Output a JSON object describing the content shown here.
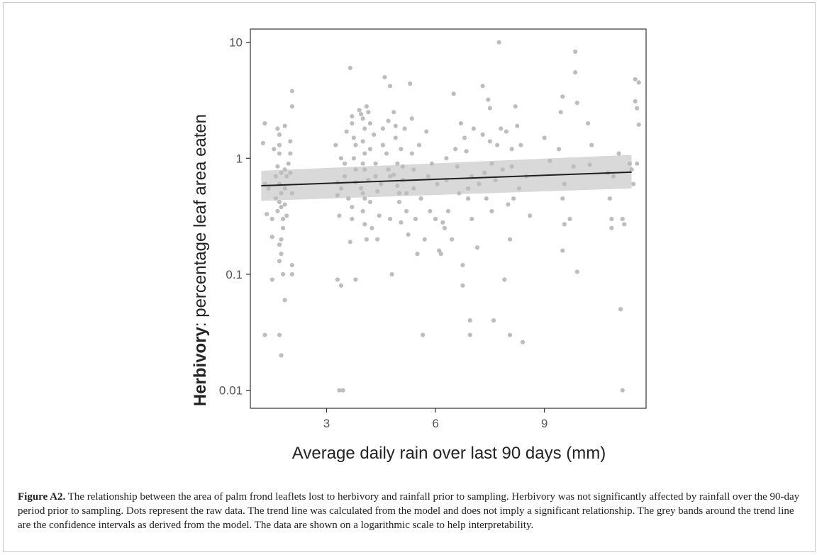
{
  "chart_data": {
    "type": "scatter",
    "title": "",
    "xlabel": "Average daily rain over last 90 days (mm)",
    "ylabel_bold": "Herbivory",
    "ylabel_rest": ": percentage leaf area eaten",
    "xlim": [
      0.9,
      11.8
    ],
    "ylim": [
      0.007,
      13
    ],
    "yscale": "log",
    "grid": false,
    "x_ticks": [
      {
        "value": 3,
        "label": "3"
      },
      {
        "value": 6,
        "label": "6"
      },
      {
        "value": 9,
        "label": "9"
      }
    ],
    "y_ticks": [
      {
        "value": 0.01,
        "label": "0.01"
      },
      {
        "value": 0.1,
        "label": "0.1"
      },
      {
        "value": 1,
        "label": "1"
      },
      {
        "value": 10,
        "label": "10"
      }
    ],
    "colors": {
      "points": "#bdbdbd",
      "line": "#1f1f1f",
      "band": "#d9d9d9",
      "axis": "#333333"
    },
    "trend": {
      "x": [
        1.2,
        11.4
      ],
      "y": [
        0.58,
        0.76
      ]
    },
    "confidence_band": {
      "x": [
        1.2,
        11.4
      ],
      "lower": [
        0.43,
        0.55
      ],
      "upper": [
        0.78,
        1.07
      ]
    },
    "points": [
      [
        1.3,
        2.0
      ],
      [
        1.25,
        1.35
      ],
      [
        1.3,
        0.6
      ],
      [
        1.4,
        0.55
      ],
      [
        1.35,
        0.33
      ],
      [
        1.3,
        0.03
      ],
      [
        1.5,
        0.3
      ],
      [
        1.5,
        0.21
      ],
      [
        1.5,
        0.09
      ],
      [
        1.55,
        1.2
      ],
      [
        1.65,
        1.8
      ],
      [
        1.7,
        1.6
      ],
      [
        1.7,
        1.3
      ],
      [
        1.7,
        1.1
      ],
      [
        1.65,
        0.85
      ],
      [
        1.75,
        0.75
      ],
      [
        1.7,
        0.6
      ],
      [
        1.75,
        0.5
      ],
      [
        1.7,
        0.42
      ],
      [
        1.75,
        0.38
      ],
      [
        1.8,
        0.3
      ],
      [
        1.8,
        0.25
      ],
      [
        1.75,
        0.2
      ],
      [
        1.7,
        0.18
      ],
      [
        1.75,
        0.15
      ],
      [
        1.7,
        0.13
      ],
      [
        1.8,
        0.1
      ],
      [
        1.7,
        0.03
      ],
      [
        1.75,
        0.02
      ],
      [
        1.85,
        1.9
      ],
      [
        1.85,
        0.8
      ],
      [
        1.85,
        0.55
      ],
      [
        1.85,
        0.4
      ],
      [
        1.9,
        0.32
      ],
      [
        1.85,
        0.06
      ],
      [
        1.9,
        0.7
      ],
      [
        1.95,
        0.9
      ],
      [
        2.0,
        1.4
      ],
      [
        2.0,
        1.1
      ],
      [
        2.05,
        3.8
      ],
      [
        2.05,
        2.8
      ],
      [
        2.0,
        0.75
      ],
      [
        2.05,
        0.5
      ],
      [
        2.05,
        0.12
      ],
      [
        2.05,
        0.1
      ],
      [
        1.6,
        0.7
      ],
      [
        1.6,
        0.45
      ],
      [
        1.65,
        0.35
      ],
      [
        3.3,
        0.09
      ],
      [
        3.4,
        0.08
      ],
      [
        3.35,
        0.01
      ],
      [
        3.45,
        0.01
      ],
      [
        3.3,
        0.62
      ],
      [
        3.4,
        0.55
      ],
      [
        3.3,
        0.48
      ],
      [
        3.35,
        0.32
      ],
      [
        3.25,
        1.3
      ],
      [
        3.4,
        1.0
      ],
      [
        3.5,
        0.7
      ],
      [
        3.5,
        0.9
      ],
      [
        3.55,
        1.7
      ],
      [
        3.6,
        0.45
      ],
      [
        3.65,
        6.0
      ],
      [
        3.7,
        2.3
      ],
      [
        3.7,
        2.0
      ],
      [
        3.75,
        1.5
      ],
      [
        3.8,
        1.3
      ],
      [
        3.75,
        1.0
      ],
      [
        3.8,
        0.8
      ],
      [
        3.8,
        0.62
      ],
      [
        3.7,
        0.38
      ],
      [
        3.7,
        0.3
      ],
      [
        3.65,
        0.19
      ],
      [
        3.8,
        0.09
      ],
      [
        3.9,
        2.6
      ],
      [
        3.95,
        2.4
      ],
      [
        4.0,
        2.2
      ],
      [
        4.05,
        1.8
      ],
      [
        4.0,
        1.4
      ],
      [
        4.05,
        1.1
      ],
      [
        4.0,
        0.9
      ],
      [
        4.05,
        0.8
      ],
      [
        3.95,
        0.55
      ],
      [
        4.0,
        0.5
      ],
      [
        4.05,
        0.45
      ],
      [
        4.0,
        0.35
      ],
      [
        4.05,
        0.27
      ],
      [
        4.1,
        0.2
      ],
      [
        4.1,
        2.8
      ],
      [
        4.15,
        2.5
      ],
      [
        4.2,
        2.0
      ],
      [
        4.2,
        1.2
      ],
      [
        4.15,
        0.65
      ],
      [
        4.2,
        0.42
      ],
      [
        4.25,
        0.25
      ],
      [
        4.3,
        1.6
      ],
      [
        4.35,
        0.9
      ],
      [
        4.35,
        0.7
      ],
      [
        4.4,
        0.52
      ],
      [
        4.45,
        0.32
      ],
      [
        4.4,
        0.2
      ],
      [
        4.5,
        0.6
      ],
      [
        4.55,
        1.8
      ],
      [
        4.55,
        1.3
      ],
      [
        4.6,
        5.0
      ],
      [
        4.65,
        1.1
      ],
      [
        4.7,
        2.1
      ],
      [
        4.7,
        0.8
      ],
      [
        4.75,
        0.7
      ],
      [
        4.75,
        0.3
      ],
      [
        4.8,
        0.1
      ],
      [
        4.75,
        4.2
      ],
      [
        4.85,
        2.5
      ],
      [
        4.9,
        1.9
      ],
      [
        4.9,
        1.5
      ],
      [
        4.95,
        0.9
      ],
      [
        4.85,
        0.72
      ],
      [
        4.95,
        0.58
      ],
      [
        5.0,
        0.42
      ],
      [
        5.0,
        0.5
      ],
      [
        5.05,
        1.2
      ],
      [
        5.05,
        0.28
      ],
      [
        5.1,
        0.85
      ],
      [
        5.1,
        0.65
      ],
      [
        5.15,
        1.8
      ],
      [
        5.2,
        0.5
      ],
      [
        5.2,
        0.35
      ],
      [
        5.25,
        0.22
      ],
      [
        5.3,
        4.4
      ],
      [
        5.35,
        2.2
      ],
      [
        5.35,
        1.1
      ],
      [
        5.4,
        0.8
      ],
      [
        5.4,
        0.55
      ],
      [
        5.45,
        0.3
      ],
      [
        5.5,
        0.15
      ],
      [
        5.55,
        1.3
      ],
      [
        5.6,
        0.45
      ],
      [
        5.65,
        0.03
      ],
      [
        5.7,
        0.2
      ],
      [
        5.75,
        1.7
      ],
      [
        5.8,
        0.7
      ],
      [
        5.85,
        0.35
      ],
      [
        5.9,
        0.9
      ],
      [
        6.0,
        0.3
      ],
      [
        6.05,
        0.6
      ],
      [
        6.1,
        0.16
      ],
      [
        6.15,
        0.15
      ],
      [
        6.2,
        0.28
      ],
      [
        6.25,
        0.25
      ],
      [
        6.3,
        1.0
      ],
      [
        6.3,
        0.65
      ],
      [
        6.35,
        0.35
      ],
      [
        6.45,
        0.2
      ],
      [
        6.5,
        3.6
      ],
      [
        6.55,
        1.2
      ],
      [
        6.6,
        0.85
      ],
      [
        6.65,
        0.5
      ],
      [
        6.7,
        2.0
      ],
      [
        6.75,
        0.12
      ],
      [
        6.75,
        0.08
      ],
      [
        6.8,
        1.5
      ],
      [
        6.85,
        1.15
      ],
      [
        6.9,
        0.55
      ],
      [
        6.9,
        0.45
      ],
      [
        6.95,
        0.04
      ],
      [
        6.95,
        0.03
      ],
      [
        7.0,
        0.3
      ],
      [
        7.05,
        1.8
      ],
      [
        7.0,
        0.7
      ],
      [
        7.15,
        0.17
      ],
      [
        7.2,
        0.6
      ],
      [
        7.3,
        4.2
      ],
      [
        7.3,
        1.6
      ],
      [
        7.35,
        0.75
      ],
      [
        7.4,
        0.45
      ],
      [
        7.45,
        3.2
      ],
      [
        7.5,
        2.7
      ],
      [
        7.5,
        1.4
      ],
      [
        7.55,
        0.9
      ],
      [
        7.55,
        0.35
      ],
      [
        7.6,
        0.04
      ],
      [
        7.65,
        0.65
      ],
      [
        7.7,
        1.3
      ],
      [
        7.75,
        10.0
      ],
      [
        7.8,
        1.8
      ],
      [
        7.85,
        0.8
      ],
      [
        7.9,
        0.09
      ],
      [
        7.95,
        1.7
      ],
      [
        8.0,
        0.4
      ],
      [
        8.05,
        0.2
      ],
      [
        8.05,
        0.03
      ],
      [
        8.1,
        1.2
      ],
      [
        8.1,
        0.85
      ],
      [
        8.15,
        0.45
      ],
      [
        8.2,
        2.8
      ],
      [
        8.25,
        1.9
      ],
      [
        8.3,
        0.55
      ],
      [
        8.35,
        1.3
      ],
      [
        8.4,
        0.026
      ],
      [
        8.5,
        0.7
      ],
      [
        8.6,
        0.32
      ],
      [
        9.0,
        1.5
      ],
      [
        9.15,
        0.95
      ],
      [
        9.4,
        1.2
      ],
      [
        9.45,
        2.5
      ],
      [
        9.5,
        0.16
      ],
      [
        9.5,
        3.4
      ],
      [
        9.55,
        0.6
      ],
      [
        9.5,
        0.45
      ],
      [
        9.55,
        0.27
      ],
      [
        9.7,
        0.3
      ],
      [
        9.8,
        0.85
      ],
      [
        9.85,
        8.3
      ],
      [
        9.85,
        5.5
      ],
      [
        9.9,
        3.0
      ],
      [
        9.9,
        0.105
      ],
      [
        10.2,
        2.0
      ],
      [
        10.25,
        0.88
      ],
      [
        10.3,
        1.3
      ],
      [
        10.75,
        0.75
      ],
      [
        10.8,
        0.45
      ],
      [
        10.85,
        0.3
      ],
      [
        10.85,
        0.25
      ],
      [
        10.9,
        0.7
      ],
      [
        11.05,
        1.1
      ],
      [
        11.1,
        0.05
      ],
      [
        11.15,
        0.3
      ],
      [
        11.2,
        0.27
      ],
      [
        11.15,
        0.01
      ],
      [
        11.35,
        0.9
      ],
      [
        11.4,
        0.8
      ],
      [
        11.45,
        0.6
      ],
      [
        11.5,
        4.8
      ],
      [
        11.5,
        3.1
      ],
      [
        11.55,
        2.7
      ],
      [
        11.6,
        4.5
      ],
      [
        11.6,
        1.95
      ],
      [
        11.55,
        0.9
      ]
    ]
  },
  "caption": {
    "label": "Figure A2.",
    "text": " The relationship between the area of palm frond leaflets lost to herbivory and rainfall prior to sampling. Herbivory was not significantly affected by rainfall over the 90-day period prior to sampling. Dots represent the raw data. The trend line was calculated from the model and does not imply a significant relationship. The grey bands around the trend line are the confidence intervals as derived from the model. The data are shown on a logarithmic scale to help interpretability."
  }
}
